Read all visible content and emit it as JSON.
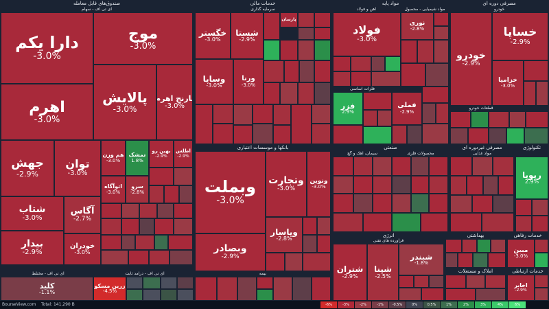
{
  "colors": {
    "background": "#1a2333",
    "neg3": "#a8293a",
    "neg25": "#a4303e",
    "neg2": "#9a3a45",
    "neg1": "#7a3d48",
    "neg05": "#5d3e49",
    "zero": "#4b4f5d",
    "pos1": "#3c6e4f",
    "pos2": "#2b8f4a",
    "pos3": "#2eb15a"
  },
  "sectors": [
    {
      "title": "صندوق‌های قابل معامله",
      "subtitle": "ای تی اف - سهام"
    },
    {
      "title": "خدمات مالی",
      "subtitle": "سرمایه گذاری"
    },
    {
      "title": "مواد پایه",
      "subtitle": "آهن و فولاد"
    },
    {
      "title": "مصرفی دوره ای",
      "subtitle": "خودرو"
    },
    {
      "title": "بانکها و موسسات اعتباری"
    },
    {
      "title": "صنعتی"
    },
    {
      "title": "مصرفی غیردوره ای"
    },
    {
      "title": "تکنولوژی"
    },
    {
      "title": "انرژی"
    },
    {
      "title": "بهداشتی"
    },
    {
      "title": "خدمات رفاهی"
    },
    {
      "title": "املاک و مستغلات"
    },
    {
      "title": "خدمات ارتباطی"
    }
  ],
  "subsectors": [
    "مواد شیمیایی - محصول",
    "فلزات اساسی",
    "سیمان، آهک و گچ",
    "فراورده های نفتی",
    "صنایع مس",
    "محصولات فلزی",
    "قطعات خودرو",
    "مواد غذایی",
    "ای تی اف - مختلط",
    "ای تی اف - درآمد ثابت",
    "بیمه"
  ],
  "tiles": [
    {
      "name": "دارا یکم",
      "pct": "-3.0%"
    },
    {
      "name": "موج",
      "pct": "-3.0%"
    },
    {
      "name": "اهرم",
      "pct": "-3.0%"
    },
    {
      "name": "پالایش",
      "pct": "-3.0%"
    },
    {
      "name": "نارنج اهرم",
      "pct": "-3.0%"
    },
    {
      "name": "جهش",
      "pct": "-2.9%"
    },
    {
      "name": "توان",
      "pct": "-3.0%"
    },
    {
      "name": "شتاب",
      "pct": "-3.0%"
    },
    {
      "name": "آگاس",
      "pct": "-2.7%"
    },
    {
      "name": "بیدار",
      "pct": "-2.9%"
    },
    {
      "name": "خودران",
      "pct": "-3.0%"
    },
    {
      "name": "تمشک",
      "pct": "1.8%"
    },
    {
      "name": "هم وزن",
      "pct": "-3.0%"
    },
    {
      "name": "بهین رو",
      "pct": "-2.9%"
    },
    {
      "name": "اطلس",
      "pct": "-2.9%"
    },
    {
      "name": "اتوآگاه",
      "pct": "-3.0%"
    },
    {
      "name": "سرو",
      "pct": "-2.8%"
    },
    {
      "name": "خگستر",
      "pct": "-3.0%"
    },
    {
      "name": "شستا",
      "pct": "-2.9%"
    },
    {
      "name": "وساپا",
      "pct": "-3.0%"
    },
    {
      "name": "ورنا",
      "pct": "-3.0%"
    },
    {
      "name": "پارسان",
      "pct": ""
    },
    {
      "name": "وبملت",
      "pct": "-3.0%"
    },
    {
      "name": "وتجارت",
      "pct": "-3.0%"
    },
    {
      "name": "ونوین",
      "pct": "-3.0%"
    },
    {
      "name": "وپاسار",
      "pct": "-2.8%"
    },
    {
      "name": "وبصادر",
      "pct": "-2.9%"
    },
    {
      "name": "فولاد",
      "pct": "-3.0%"
    },
    {
      "name": "فزر",
      "pct": "2.9%"
    },
    {
      "name": "نوری",
      "pct": "-2.8%"
    },
    {
      "name": "فملی",
      "pct": "-2.9%"
    },
    {
      "name": "خساپا",
      "pct": "-2.9%"
    },
    {
      "name": "خودرو",
      "pct": "-2.9%"
    },
    {
      "name": "خزامیا",
      "pct": "-3.0%"
    },
    {
      "name": "رپویا",
      "pct": "2.9%"
    },
    {
      "name": "شپنا",
      "pct": "-2.5%"
    },
    {
      "name": "شتران",
      "pct": "-2.9%"
    },
    {
      "name": "شبندر",
      "pct": "-1.8%"
    },
    {
      "name": "کلید",
      "pct": "-1.1%"
    },
    {
      "name": "زرین مسکو",
      "pct": "-4.5%"
    },
    {
      "name": "مبین",
      "pct": "-3.0%"
    },
    {
      "name": "اخابر",
      "pct": "-2.9%"
    }
  ],
  "small_labels": [
    "کرمان",
    "وغدیر",
    "وبانک",
    "شکام",
    "خگستر",
    "فارس",
    "سپ",
    "فجام",
    "کگل",
    "کچاد",
    "فروی",
    "شیراز",
    "حسیر",
    "حکشتی",
    "غدیر",
    "سرود",
    "شفارس",
    "پترول",
    "تپکو",
    "غکور",
    "وپسا",
    "بورس",
    "اپال",
    "وتوصا"
  ],
  "footer": {
    "brand": "BourseView.com",
    "total": "Total: 141,290 B"
  },
  "legend": [
    "-6%",
    "-3%",
    "-2%",
    "-1%",
    "-0.5%",
    "0%",
    "0.5%",
    "1%",
    "2%",
    "3%",
    "4%",
    "6%"
  ],
  "legend_colors": [
    "#d22b2b",
    "#b02838",
    "#9a3a45",
    "#7a3d48",
    "#5d3e49",
    "#3f4452",
    "#3b5446",
    "#3c6e4f",
    "#2b8f4a",
    "#2eb15a",
    "#3bc96a",
    "#4be27a"
  ]
}
